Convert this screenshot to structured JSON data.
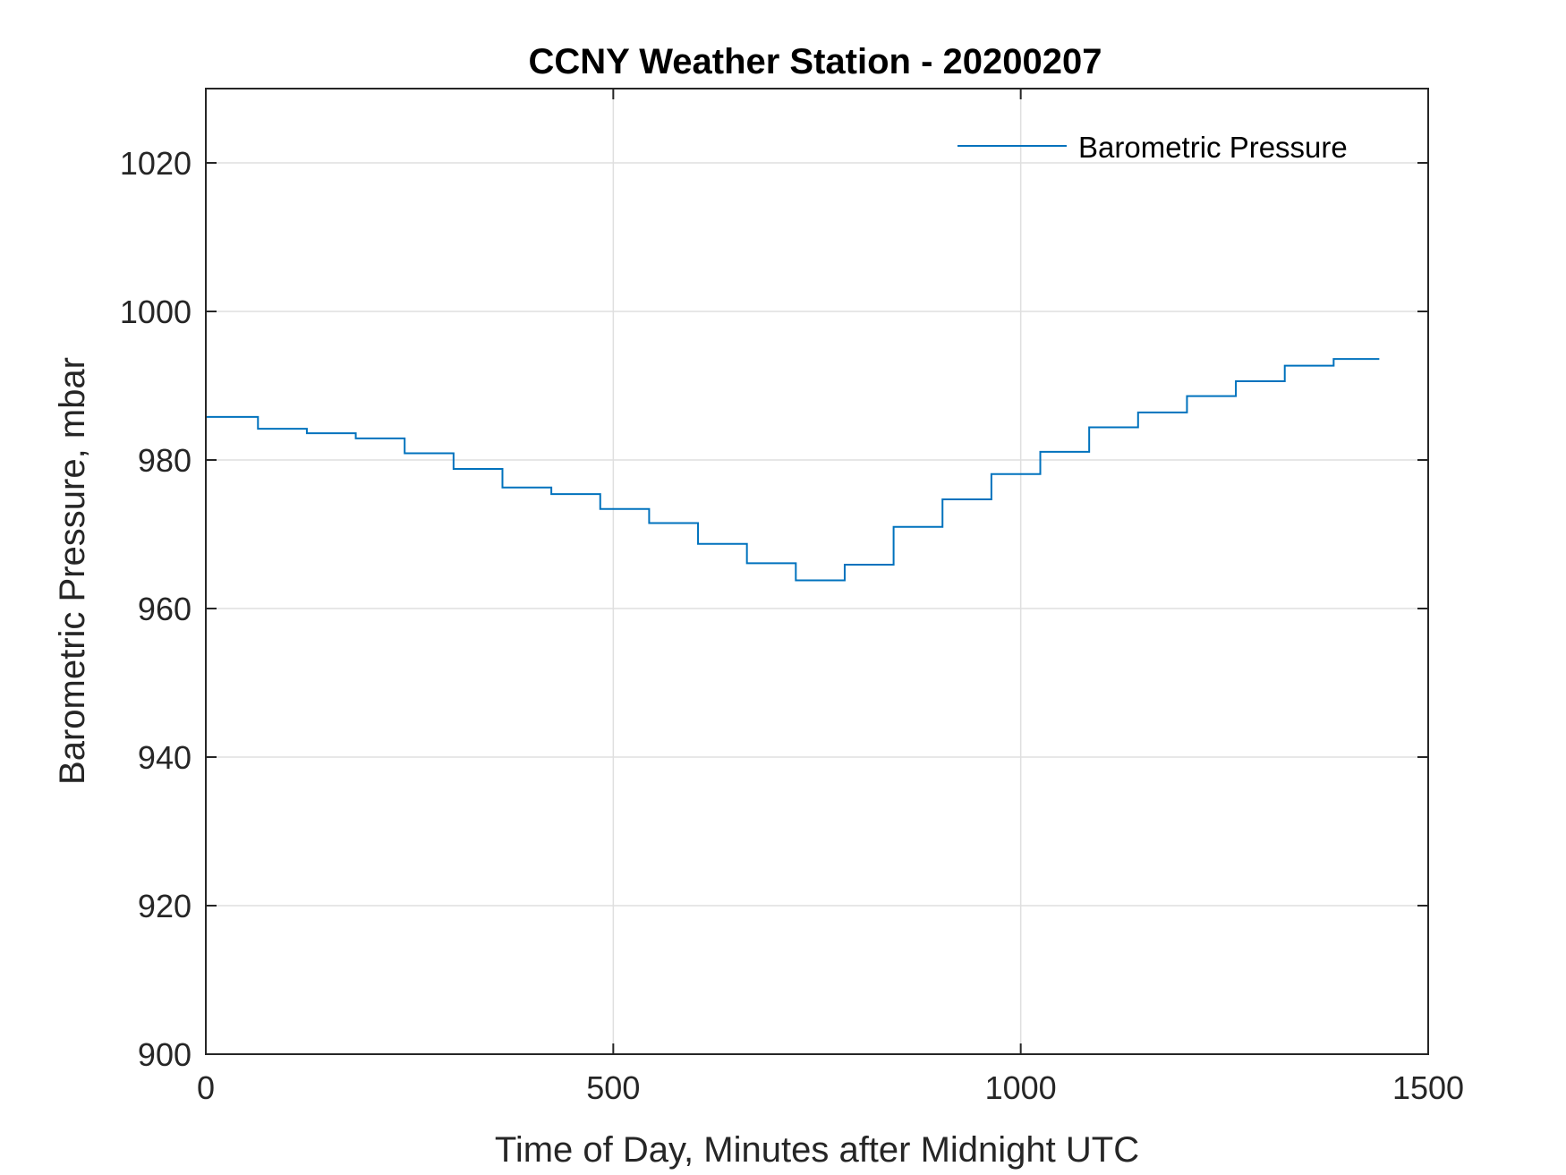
{
  "chart_data": {
    "type": "line",
    "title": "CCNY Weather Station - 20200207",
    "xlabel": "Time of Day, Minutes after Midnight UTC",
    "ylabel": "Barometric Pressure, mbar",
    "xlim": [
      0,
      1500
    ],
    "ylim": [
      900,
      1030
    ],
    "xticks": [
      0,
      500,
      1000,
      1500
    ],
    "yticks": [
      900,
      920,
      940,
      960,
      980,
      1000,
      1020
    ],
    "grid": true,
    "legend_position": "top-right",
    "line_color": "#0072BD",
    "series": [
      {
        "name": "Barometric Pressure",
        "step": true,
        "x": [
          0,
          64,
          124,
          184,
          244,
          304,
          364,
          424,
          484,
          544,
          604,
          664,
          724,
          784,
          844,
          904,
          964,
          1024,
          1084,
          1144,
          1204,
          1264,
          1324,
          1384,
          1440
        ],
        "y": [
          985.8,
          984.2,
          983.6,
          982.9,
          980.9,
          978.8,
          976.3,
          975.4,
          973.4,
          971.5,
          968.7,
          966.1,
          963.8,
          965.9,
          971.0,
          974.7,
          978.1,
          981.1,
          984.4,
          986.4,
          988.6,
          990.6,
          992.7,
          993.6,
          993.6
        ]
      }
    ]
  }
}
